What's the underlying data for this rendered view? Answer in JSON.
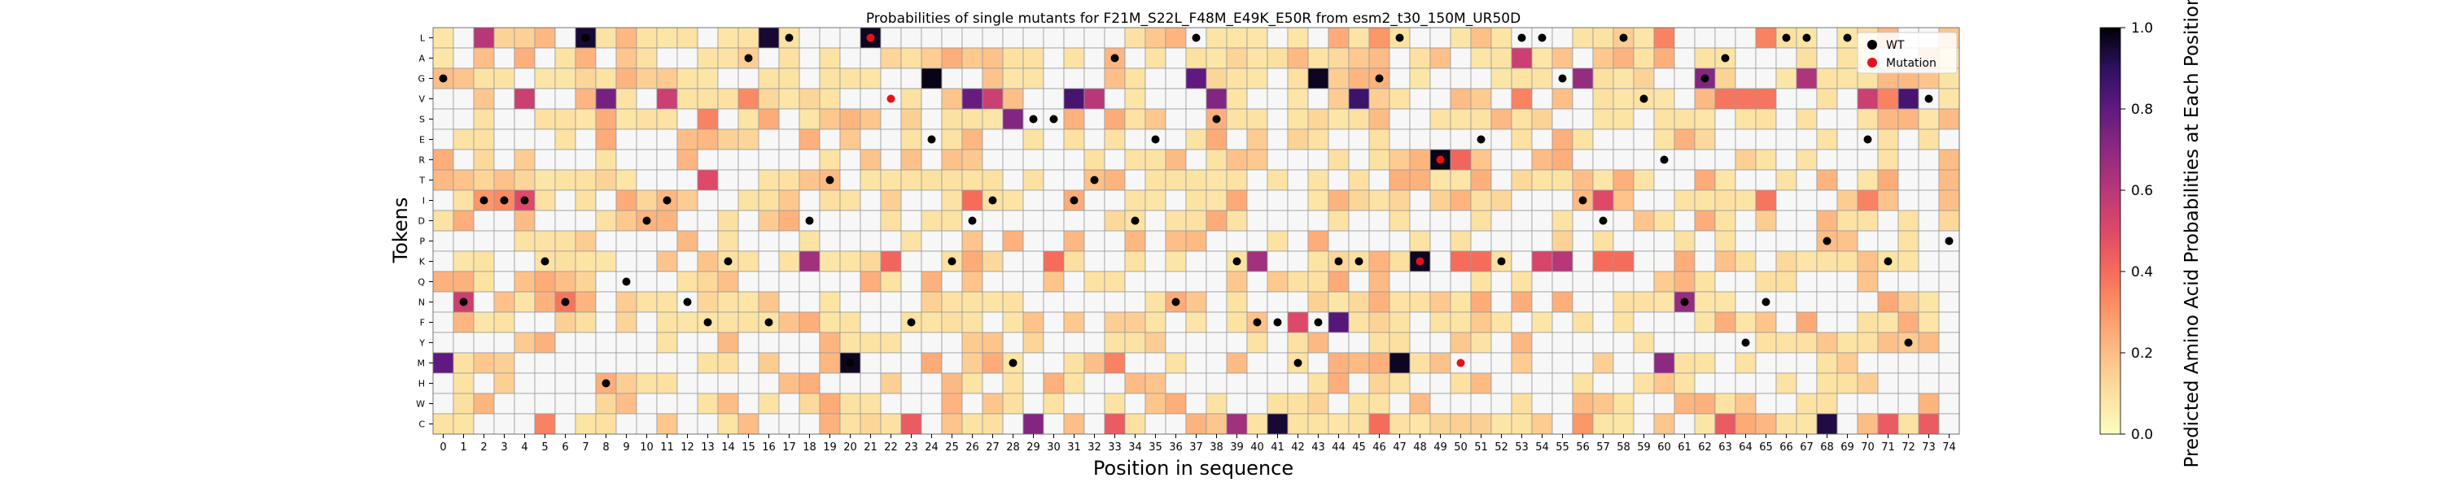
{
  "chart_data": {
    "type": "heatmap",
    "title": "Probabilities of single mutants for F21M_S22L_F48M_E49K_E50R from esm2_t30_150M_UR50D",
    "xlabel": "Position in sequence",
    "ylabel": "Tokens",
    "colorbar_label": "Predicted Amino Acid Probabilities at Each Position",
    "colorbar_ticks": [
      "0.0",
      "0.2",
      "0.4",
      "0.6",
      "0.8",
      "1.0"
    ],
    "colorbar_range": [
      0,
      1
    ],
    "colormap": "magma_r",
    "grid": true,
    "legend_position": "upper-right",
    "legend": [
      {
        "label": "WT",
        "color": "#000000"
      },
      {
        "label": "Mutation",
        "color": "#e8111a"
      }
    ],
    "tokens": [
      "L",
      "A",
      "G",
      "V",
      "S",
      "E",
      "R",
      "T",
      "I",
      "D",
      "P",
      "K",
      "Q",
      "N",
      "F",
      "Y",
      "M",
      "H",
      "W",
      "C"
    ],
    "positions": [
      "0",
      "1",
      "2",
      "3",
      "4",
      "5",
      "6",
      "7",
      "8",
      "9",
      "10",
      "11",
      "12",
      "13",
      "14",
      "15",
      "16",
      "17",
      "18",
      "19",
      "20",
      "21",
      "22",
      "23",
      "24",
      "25",
      "26",
      "27",
      "28",
      "29",
      "30",
      "31",
      "32",
      "33",
      "34",
      "35",
      "36",
      "37",
      "38",
      "39",
      "40",
      "41",
      "42",
      "43",
      "44",
      "45",
      "46",
      "47",
      "48",
      "49",
      "50",
      "51",
      "52",
      "53",
      "54",
      "55",
      "56",
      "57",
      "58",
      "59",
      "60",
      "61",
      "62",
      "63",
      "64",
      "65",
      "66",
      "67",
      "68",
      "69",
      "70",
      "71",
      "72",
      "73",
      "74"
    ],
    "wt_sequence": "GNIIIKNLHQDINFKAFLDTMLVFEKDIMSSITADENLSKFFMFKKGLRILEKLLGIDLVRNGAYNLLPLEKYVP",
    "mutation_positions": [
      21,
      22,
      48,
      49,
      50
    ],
    "mutation_tokens": [
      "L",
      "V",
      "K",
      "R",
      "M"
    ],
    "high_cells": [
      {
        "token": "L",
        "position": 7,
        "value": 0.95
      },
      {
        "token": "L",
        "position": 16,
        "value": 0.95
      },
      {
        "token": "L",
        "position": 21,
        "value": 0.97
      },
      {
        "token": "G",
        "position": 24,
        "value": 0.98
      },
      {
        "token": "G",
        "position": 43,
        "value": 0.97
      },
      {
        "token": "M",
        "position": 20,
        "value": 0.97
      },
      {
        "token": "M",
        "position": 47,
        "value": 0.97
      },
      {
        "token": "K",
        "position": 48,
        "value": 0.97
      },
      {
        "token": "R",
        "position": 49,
        "value": 0.98
      },
      {
        "token": "C",
        "position": 41,
        "value": 0.95
      },
      {
        "token": "C",
        "position": 68,
        "value": 0.93
      },
      {
        "token": "V",
        "position": 31,
        "value": 0.85
      },
      {
        "token": "V",
        "position": 45,
        "value": 0.87
      },
      {
        "token": "V",
        "position": 72,
        "value": 0.85
      },
      {
        "token": "G",
        "position": 37,
        "value": 0.8
      },
      {
        "token": "F",
        "position": 44,
        "value": 0.82
      },
      {
        "token": "M",
        "position": 0,
        "value": 0.8
      },
      {
        "token": "S",
        "position": 28,
        "value": 0.72
      },
      {
        "token": "V",
        "position": 8,
        "value": 0.75
      },
      {
        "token": "V",
        "position": 26,
        "value": 0.78
      },
      {
        "token": "V",
        "position": 38,
        "value": 0.72
      },
      {
        "token": "C",
        "position": 29,
        "value": 0.72
      },
      {
        "token": "C",
        "position": 39,
        "value": 0.65
      },
      {
        "token": "K",
        "position": 18,
        "value": 0.65
      },
      {
        "token": "K",
        "position": 40,
        "value": 0.65
      },
      {
        "token": "K",
        "position": 55,
        "value": 0.6
      },
      {
        "token": "M",
        "position": 60,
        "value": 0.7
      },
      {
        "token": "N",
        "position": 61,
        "value": 0.68
      },
      {
        "token": "G",
        "position": 56,
        "value": 0.68
      },
      {
        "token": "G",
        "position": 62,
        "value": 0.72
      },
      {
        "token": "G",
        "position": 67,
        "value": 0.62
      },
      {
        "token": "A",
        "position": 53,
        "value": 0.55
      },
      {
        "token": "V",
        "position": 4,
        "value": 0.55
      },
      {
        "token": "V",
        "position": 11,
        "value": 0.55
      },
      {
        "token": "V",
        "position": 27,
        "value": 0.55
      },
      {
        "token": "V",
        "position": 32,
        "value": 0.6
      },
      {
        "token": "V",
        "position": 70,
        "value": 0.55
      },
      {
        "token": "L",
        "position": 2,
        "value": 0.6
      },
      {
        "token": "N",
        "position": 1,
        "value": 0.55
      },
      {
        "token": "I",
        "position": 4,
        "value": 0.5
      },
      {
        "token": "I",
        "position": 57,
        "value": 0.5
      },
      {
        "token": "F",
        "position": 42,
        "value": 0.5
      },
      {
        "token": "K",
        "position": 54,
        "value": 0.52
      },
      {
        "token": "T",
        "position": 13,
        "value": 0.5
      },
      {
        "token": "C",
        "position": 23,
        "value": 0.45
      },
      {
        "token": "C",
        "position": 33,
        "value": 0.45
      },
      {
        "token": "C",
        "position": 63,
        "value": 0.45
      },
      {
        "token": "C",
        "position": 71,
        "value": 0.45
      },
      {
        "token": "C",
        "position": 73,
        "value": 0.45
      },
      {
        "token": "R",
        "position": 50,
        "value": 0.42
      },
      {
        "token": "K",
        "position": 30,
        "value": 0.4
      },
      {
        "token": "K",
        "position": 50,
        "value": 0.4
      },
      {
        "token": "K",
        "position": 51,
        "value": 0.4
      },
      {
        "token": "K",
        "position": 22,
        "value": 0.42
      },
      {
        "token": "K",
        "position": 57,
        "value": 0.4
      },
      {
        "token": "K",
        "position": 58,
        "value": 0.4
      },
      {
        "token": "I",
        "position": 26,
        "value": 0.4
      },
      {
        "token": "I",
        "position": 65,
        "value": 0.38
      },
      {
        "token": "I",
        "position": 70,
        "value": 0.35
      },
      {
        "token": "V",
        "position": 63,
        "value": 0.38
      },
      {
        "token": "V",
        "position": 64,
        "value": 0.38
      },
      {
        "token": "V",
        "position": 65,
        "value": 0.38
      },
      {
        "token": "V",
        "position": 71,
        "value": 0.35
      },
      {
        "token": "V",
        "position": 53,
        "value": 0.35
      },
      {
        "token": "V",
        "position": 15,
        "value": 0.33
      },
      {
        "token": "S",
        "position": 13,
        "value": 0.35
      },
      {
        "token": "L",
        "position": 60,
        "value": 0.35
      },
      {
        "token": "L",
        "position": 65,
        "value": 0.35
      },
      {
        "token": "L",
        "position": 46,
        "value": 0.3
      },
      {
        "token": "C",
        "position": 5,
        "value": 0.35
      },
      {
        "token": "C",
        "position": 46,
        "value": 0.4
      },
      {
        "token": "C",
        "position": 56,
        "value": 0.3
      },
      {
        "token": "M",
        "position": 33,
        "value": 0.35
      },
      {
        "token": "N",
        "position": 6,
        "value": 0.38
      },
      {
        "token": "I",
        "position": 3,
        "value": 0.33
      },
      {
        "token": "I",
        "position": 2,
        "value": 0.3
      },
      {
        "token": "E",
        "position": 0,
        "value": 0.0
      }
    ]
  }
}
